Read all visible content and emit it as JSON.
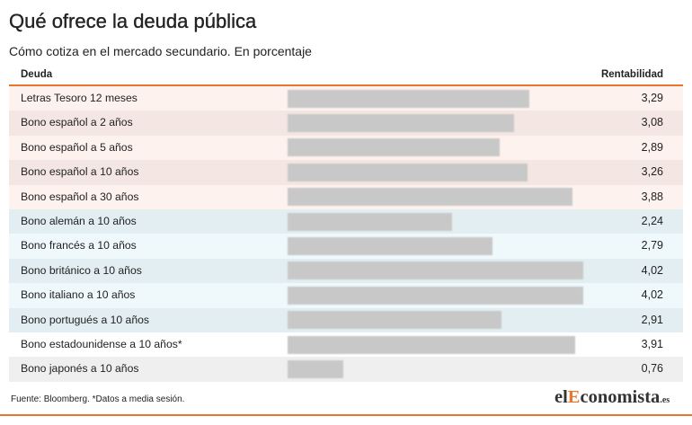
{
  "chart_data": {
    "type": "bar",
    "orientation": "horizontal",
    "title": "Qué ofrece la deuda pública",
    "subtitle": "Cómo cotiza en el mercado secundario. En porcentaje",
    "category_header": "Deuda",
    "value_header": "Rentabilidad",
    "categories": [
      "Letras Tesoro 12 meses",
      "Bono español a 2 años",
      "Bono español a 5 años",
      "Bono español a 10 años",
      "Bono español a 30 años",
      "Bono alemán a 10 años",
      "Bono francés a 10 años",
      "Bono británico a 10 años",
      "Bono italiano a 10 años",
      "Bono portugués a 10 años",
      "Bono estadounidense a 10 años*",
      "Bono japonés a 10 años"
    ],
    "values": [
      3.29,
      3.08,
      2.89,
      3.26,
      3.88,
      2.24,
      2.79,
      4.02,
      4.02,
      2.91,
      3.91,
      0.76
    ],
    "value_labels": [
      "3,29",
      "3,08",
      "2,89",
      "3,26",
      "3,88",
      "2,24",
      "2,79",
      "4,02",
      "4,02",
      "2,91",
      "3,91",
      "0,76"
    ],
    "grid": false,
    "legend": "none"
  },
  "footer": {
    "source": "Fuente: Bloomberg. *Datos a media sesión."
  },
  "logo": {
    "prefix": "el",
    "initial": "E",
    "rest": "conomista",
    "suffix": ".es"
  },
  "colors": {
    "accent": "#e9762c",
    "bar": "#c8c8c8",
    "text": "#222222",
    "logo_text": "#333333",
    "row_backgrounds": [
      "#fdf2ee",
      "#f4e6e2",
      "#fdf2ee",
      "#f4e6e2",
      "#fdf2ee",
      "#e2eef1",
      "#eff8fb",
      "#e2eef1",
      "#eff8fb",
      "#e2eef1",
      "#ffffff",
      "#efefef"
    ]
  }
}
